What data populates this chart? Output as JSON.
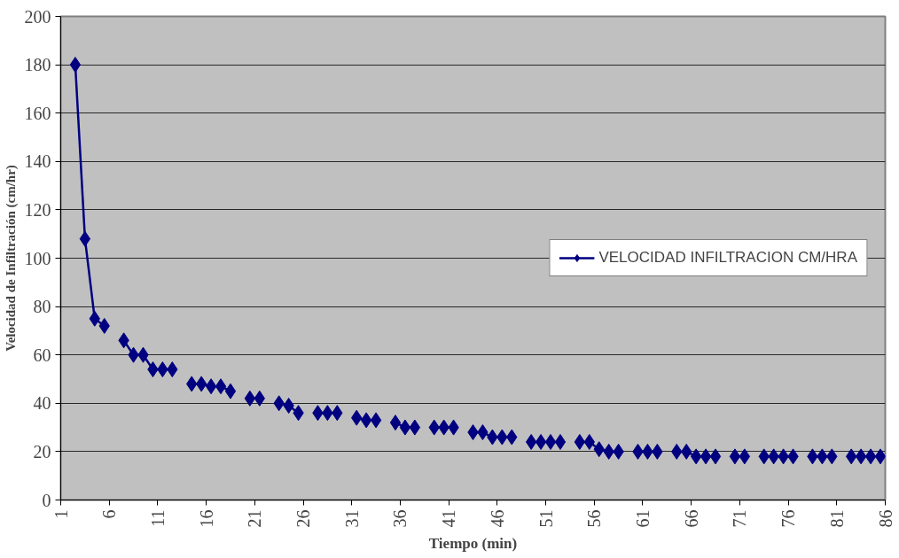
{
  "chart_data": {
    "type": "line",
    "xlabel": "Tiempo (min)",
    "ylabel": "Velocidad de Infiltración (cm/hr)",
    "x": [
      2.5,
      3.5,
      4.5,
      5.5,
      6.5,
      7.5,
      8.5,
      9.5,
      10.5,
      11.5,
      12.5,
      13.5,
      14.5,
      15.5,
      16.5,
      17.5,
      18.5,
      19.5,
      20.5,
      21.5,
      22.5,
      23.5,
      24.5,
      25.5,
      26.5,
      27.5,
      28.5,
      29.5,
      30.5,
      31.5,
      32.5,
      33.5,
      34.5,
      35.5,
      36.5,
      37.5,
      38.5,
      39.5,
      40.5,
      41.5,
      42.5,
      43.5,
      44.5,
      45.5,
      46.5,
      47.5,
      48.5,
      49.5,
      50.5,
      51.5,
      52.5,
      53.5,
      54.5,
      55.5,
      56.5,
      57.5,
      58.5,
      59.5,
      60.5,
      61.5,
      62.5,
      63.5,
      64.5,
      65.5,
      66.5,
      67.5,
      68.5,
      69.5,
      70.5,
      71.5,
      72.5,
      73.5,
      74.5,
      75.5,
      76.5,
      77.5,
      78.5,
      79.5,
      80.5,
      81.5,
      82.5,
      83.5,
      84.5,
      85.5
    ],
    "series": [
      {
        "name": "VELOCIDAD INFILTRACION CM/HRA",
        "color": "#000080",
        "values": [
          180,
          108,
          75,
          72,
          null,
          66,
          60,
          60,
          54,
          54,
          54,
          null,
          48,
          48,
          47,
          47,
          45,
          null,
          42,
          42,
          null,
          40,
          39,
          36,
          null,
          36,
          36,
          36,
          null,
          34,
          33,
          33,
          null,
          32,
          30,
          30,
          null,
          30,
          30,
          30,
          null,
          28,
          28,
          26,
          26,
          26,
          null,
          24,
          24,
          24,
          24,
          null,
          24,
          24,
          21,
          20,
          20,
          null,
          20,
          20,
          20,
          null,
          20,
          20,
          18,
          18,
          18,
          null,
          18,
          18,
          null,
          18,
          18,
          18,
          18,
          null,
          18,
          18,
          18,
          null,
          18,
          18,
          18,
          18
        ]
      }
    ],
    "xlim": [
      1,
      86
    ],
    "xticks": [
      1,
      6,
      11,
      16,
      21,
      26,
      31,
      36,
      41,
      46,
      51,
      56,
      61,
      66,
      71,
      76,
      81,
      86
    ],
    "ylim": [
      0,
      200
    ],
    "yticks": [
      0,
      20,
      40,
      60,
      80,
      100,
      120,
      140,
      160,
      180,
      200
    ],
    "grid": "y",
    "legend": "right",
    "marker": "diamond",
    "line_style": "solid"
  }
}
